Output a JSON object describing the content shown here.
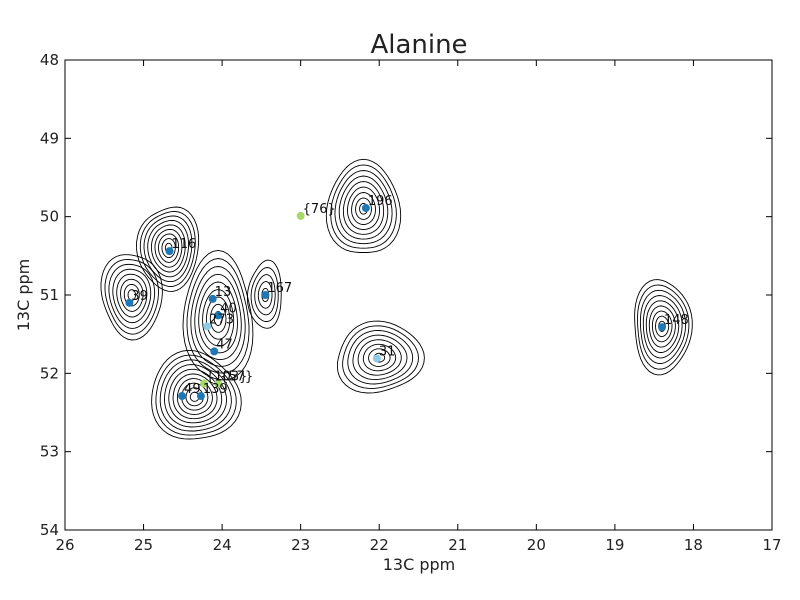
{
  "chart_data": {
    "type": "scatter",
    "title": "Alanine",
    "xlabel": "13C ppm",
    "ylabel": "13C ppm",
    "xlim": [
      26,
      17
    ],
    "ylim": [
      54,
      48
    ],
    "x_reversed": true,
    "y_reversed": true,
    "grid": false,
    "x_ticks": [
      26,
      25,
      24,
      23,
      22,
      21,
      20,
      19,
      18,
      17
    ],
    "y_ticks": [
      48,
      49,
      50,
      51,
      52,
      53,
      54
    ],
    "x_tick_labels": [
      "26",
      "25",
      "24",
      "23",
      "22",
      "21",
      "20",
      "19",
      "18",
      "17"
    ],
    "y_tick_labels": [
      "48",
      "49",
      "50",
      "51",
      "52",
      "53",
      "54"
    ],
    "colors": {
      "dark": "#1f77b4",
      "light": "#8ecae6",
      "green": "#a6d96a",
      "contour": "#000000"
    },
    "points": [
      {
        "label": "196",
        "x": 22.17,
        "y": 49.89,
        "color": "#1f77b4"
      },
      {
        "label": "{76}",
        "x": 23.0,
        "y": 49.99,
        "color": "#a6d96a"
      },
      {
        "label": "116",
        "x": 24.67,
        "y": 50.44,
        "color": "#1f77b4"
      },
      {
        "label": "39",
        "x": 25.18,
        "y": 51.1,
        "color": "#1f77b4"
      },
      {
        "label": "167",
        "x": 23.45,
        "y": 51.0,
        "color": "#1f77b4"
      },
      {
        "label": "13",
        "x": 24.12,
        "y": 51.05,
        "color": "#1f77b4"
      },
      {
        "label": "40",
        "x": 24.05,
        "y": 51.26,
        "color": "#1f77b4"
      },
      {
        "label": "273",
        "x": 24.19,
        "y": 51.4,
        "color": "#8ecae6"
      },
      {
        "label": "47",
        "x": 24.1,
        "y": 51.72,
        "color": "#1f77b4"
      },
      {
        "label": "31",
        "x": 22.03,
        "y": 51.81,
        "color": "#8ecae6"
      },
      {
        "label": "148",
        "x": 18.4,
        "y": 51.41,
        "color": "#1f77b4"
      },
      {
        "label": "{103}",
        "x": 24.23,
        "y": 52.13,
        "color": "#a6d96a"
      },
      {
        "label": "{57}",
        "x": 24.05,
        "y": 52.13,
        "color": "#a6d96a"
      },
      {
        "label": "49",
        "x": 24.51,
        "y": 52.29,
        "color": "#1f77b4"
      },
      {
        "label": "139",
        "x": 24.27,
        "y": 52.29,
        "color": "#1f77b4"
      }
    ],
    "contour_regions": [
      {
        "cx": 22.2,
        "cy": 49.9,
        "rx": 0.45,
        "ry": 0.62,
        "levels": 9
      },
      {
        "cx": 22.0,
        "cy": 51.8,
        "rx": 0.55,
        "ry": 0.45,
        "levels": 8
      },
      {
        "cx": 18.4,
        "cy": 51.4,
        "rx": 0.38,
        "ry": 0.58,
        "levels": 9
      },
      {
        "cx": 25.15,
        "cy": 51.0,
        "rx": 0.38,
        "ry": 0.55,
        "levels": 8
      },
      {
        "cx": 24.68,
        "cy": 50.4,
        "rx": 0.38,
        "ry": 0.55,
        "levels": 9
      },
      {
        "cx": 23.45,
        "cy": 51.0,
        "rx": 0.22,
        "ry": 0.42,
        "levels": 5
      },
      {
        "cx": 24.05,
        "cy": 51.3,
        "rx": 0.45,
        "ry": 0.8,
        "levels": 9
      },
      {
        "cx": 24.35,
        "cy": 52.3,
        "rx": 0.55,
        "ry": 0.58,
        "levels": 10
      }
    ]
  }
}
